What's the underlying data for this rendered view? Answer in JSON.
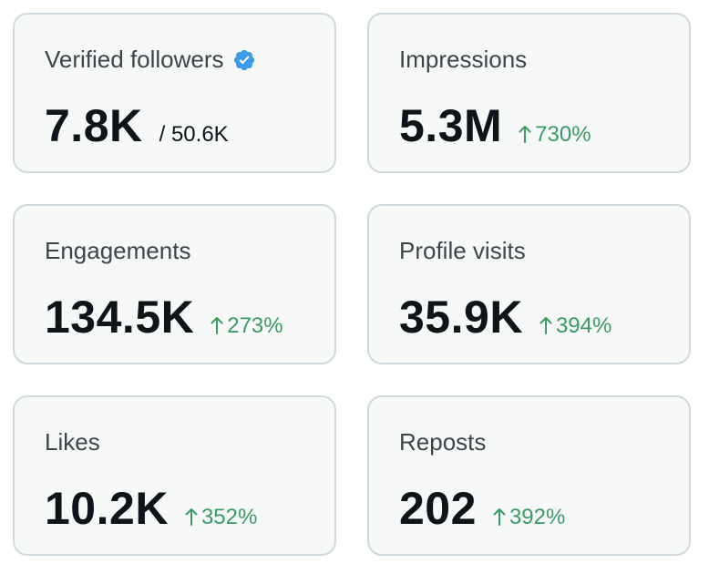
{
  "cards": [
    {
      "title": "Verified followers",
      "value": "7.8K",
      "total": "/ 50.6K",
      "icon": "verified-badge-icon"
    },
    {
      "title": "Impressions",
      "value": "5.3M",
      "change": "730%",
      "trend_icon": "arrow-up-icon"
    },
    {
      "title": "Engagements",
      "value": "134.5K",
      "change": "273%",
      "trend_icon": "arrow-up-icon"
    },
    {
      "title": "Profile visits",
      "value": "35.9K",
      "change": "394%",
      "trend_icon": "arrow-up-icon"
    },
    {
      "title": "Likes",
      "value": "10.2K",
      "change": "352%",
      "trend_icon": "arrow-up-icon"
    },
    {
      "title": "Reposts",
      "value": "202",
      "change": "392%",
      "trend_icon": "arrow-up-icon"
    }
  ],
  "colors": {
    "card_background": "#f7f9f9",
    "card_border": "#cfd9de",
    "positive_change": "#3b9a63",
    "verified_badge": "#3c9bea",
    "title_text": "#3e4449",
    "value_text": "#0f1419"
  }
}
